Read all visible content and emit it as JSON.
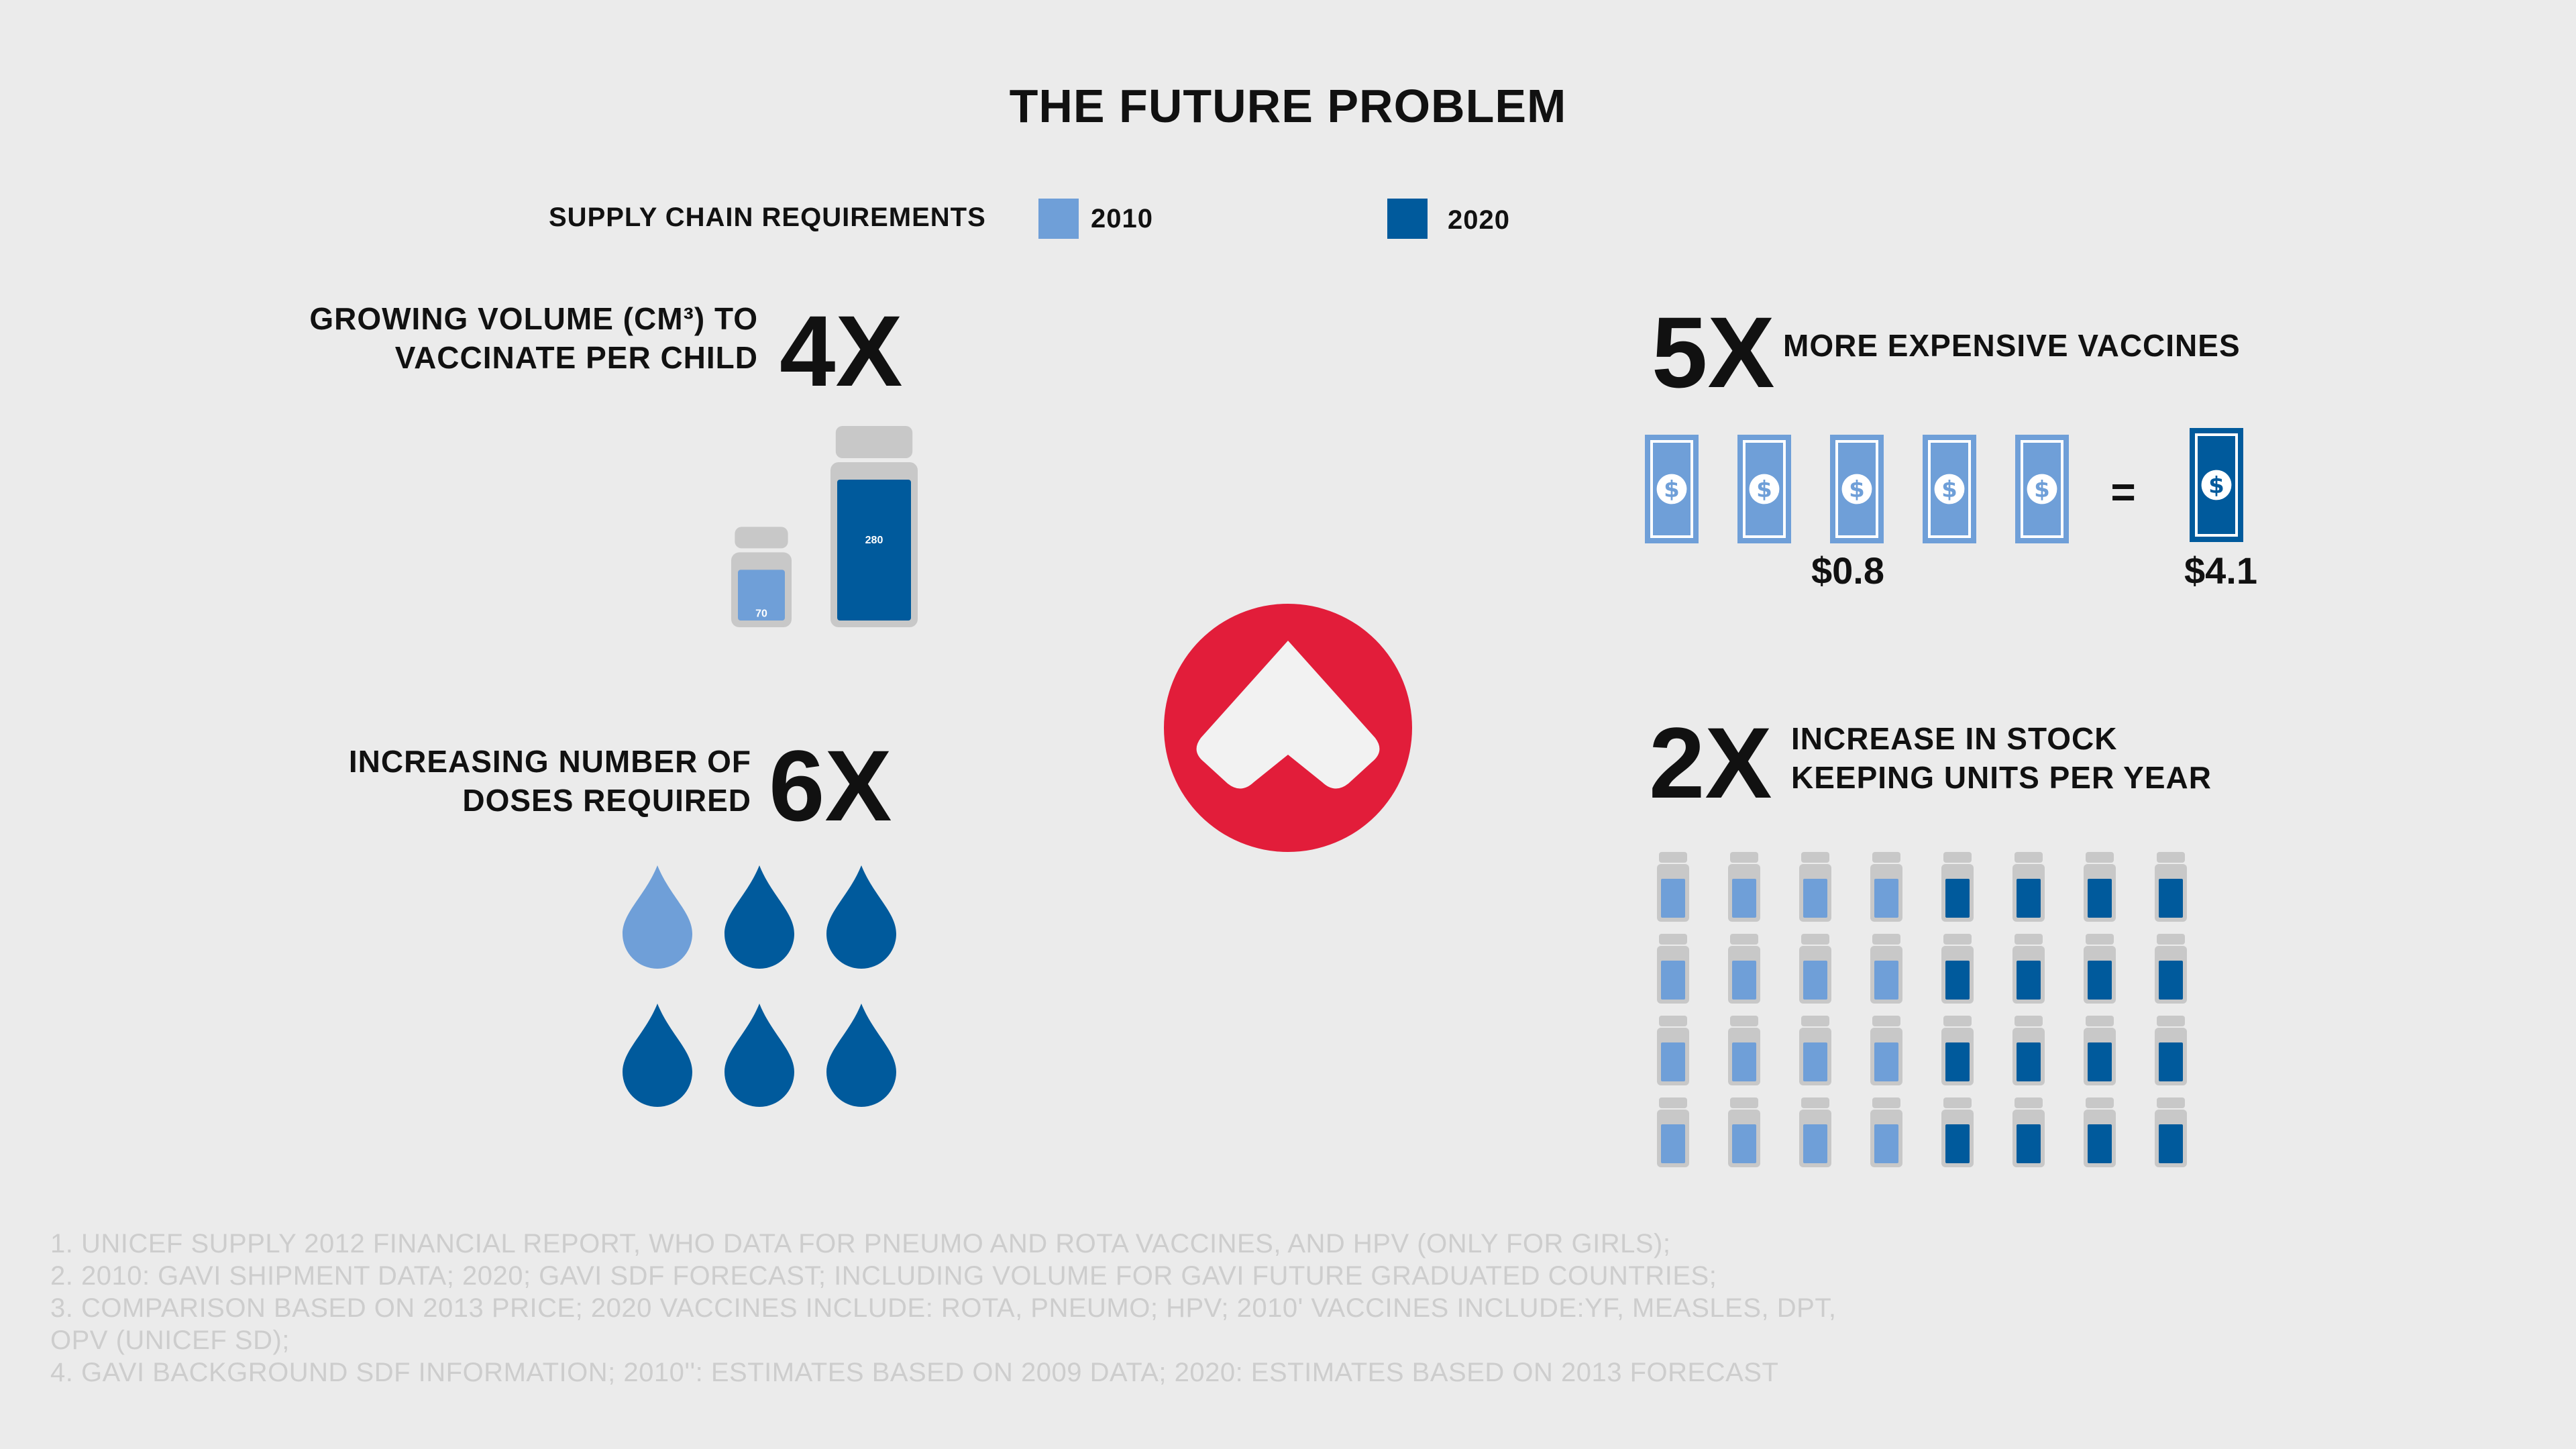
{
  "title": "THE FUTURE PROBLEM",
  "legend": {
    "label": "SUPPLY CHAIN REQUIREMENTS",
    "items": [
      {
        "label": "2010",
        "color": "#6f9fd8"
      },
      {
        "label": "2020",
        "color": "#005a9c"
      }
    ]
  },
  "colors": {
    "c2010": "#6f9fd8",
    "c2020": "#005a9c",
    "vial_glass": "#c8c8c8",
    "logo_red": "#e21d3a"
  },
  "chart_data": [
    {
      "type": "bar",
      "multiplier": "4X",
      "caption": [
        "GROWING VOLUME (CM³) TO",
        "VACCINATE PER CHILD"
      ],
      "categories": [
        "2010",
        "2020"
      ],
      "values": [
        70,
        280
      ],
      "value_labels": [
        "70",
        "280"
      ]
    },
    {
      "type": "table",
      "multiplier": "5X",
      "caption": "MORE EXPENSIVE VACCINES",
      "categories": [
        "2010",
        "2020"
      ],
      "values": [
        0.8,
        4.1
      ],
      "value_labels": [
        "$0.8",
        "$4.1"
      ],
      "icons": {
        "2010": 5,
        "2020": 1
      },
      "equals": "="
    },
    {
      "type": "table",
      "multiplier": "6X",
      "caption": [
        "INCREASING NUMBER OF",
        "DOSES REQUIRED"
      ],
      "categories": [
        "2010",
        "2020"
      ],
      "icons": {
        "2010": 1,
        "2020": 5
      }
    },
    {
      "type": "table",
      "multiplier": "2X",
      "caption": [
        "INCREASE IN STOCK",
        "KEEPING UNITS PER YEAR"
      ],
      "categories": [
        "2010",
        "2020"
      ],
      "icons": {
        "2010": 16,
        "2020": 16
      }
    }
  ],
  "notes": [
    "1. UNICEF SUPPLY 2012 FINANCIAL REPORT, WHO DATA FOR PNEUMO AND ROTA VACCINES, AND HPV (ONLY FOR GIRLS);",
    "2. 2010: GAVI SHIPMENT DATA; 2020; GAVI SDF FORECAST; INCLUDING VOLUME FOR GAVI FUTURE GRADUATED COUNTRIES;",
    "3. COMPARISON BASED ON 2013 PRICE; 2020 VACCINES INCLUDE: ROTA, PNEUMO; HPV; 2010' VACCINES INCLUDE:YF, MEASLES, DPT,",
    "OPV (UNICEF SD);",
    "4. GAVI BACKGROUND SDF INFORMATION; 2010'': ESTIMATES BASED ON 2009 DATA; 2020: ESTIMATES BASED ON 2013 FORECAST"
  ]
}
